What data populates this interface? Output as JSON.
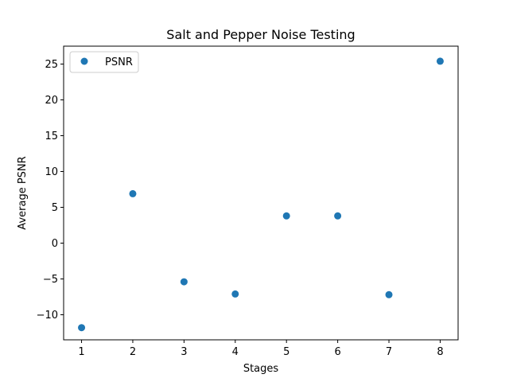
{
  "chart_data": {
    "type": "scatter",
    "title": "Salt and Pepper Noise Testing",
    "xlabel": "Stages",
    "ylabel": "Average PSNR",
    "xlim": [
      0.65,
      8.35
    ],
    "ylim": [
      -13.5,
      27.5
    ],
    "xticks": [
      1,
      2,
      3,
      4,
      5,
      6,
      7,
      8
    ],
    "xtick_labels": [
      "1",
      "2",
      "3",
      "4",
      "5",
      "6",
      "7",
      "8"
    ],
    "yticks": [
      -10,
      -5,
      0,
      5,
      10,
      15,
      20,
      25
    ],
    "ytick_labels": [
      "−10",
      "−5",
      "0",
      "5",
      "10",
      "15",
      "20",
      "25"
    ],
    "grid": false,
    "legend_position": "upper-left",
    "series": [
      {
        "name": "PSNR",
        "color": "#1f77b4",
        "marker": "circle",
        "x": [
          1,
          2,
          3,
          4,
          5,
          6,
          7,
          8
        ],
        "y": [
          -11.8,
          6.9,
          -5.4,
          -7.1,
          3.8,
          3.8,
          -7.2,
          25.4
        ]
      }
    ]
  }
}
